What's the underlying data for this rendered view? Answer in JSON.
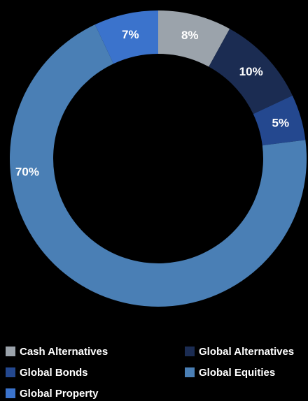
{
  "chart_data": {
    "type": "pie",
    "donut": true,
    "slices": [
      {
        "name": "Cash Alternatives",
        "value": 8,
        "label": "8%",
        "color": "#9ba3ab"
      },
      {
        "name": "Global Alternatives",
        "value": 10,
        "label": "10%",
        "color": "#1b2c52"
      },
      {
        "name": "Global Bonds",
        "value": 5,
        "label": "5%",
        "color": "#24488f"
      },
      {
        "name": "Global Equities",
        "value": 70,
        "label": "70%",
        "color": "#4a7fb5"
      },
      {
        "name": "Global Property",
        "value": 7,
        "label": "7%",
        "color": "#3b73cc"
      }
    ],
    "legend": {
      "placement": "bottom"
    }
  }
}
